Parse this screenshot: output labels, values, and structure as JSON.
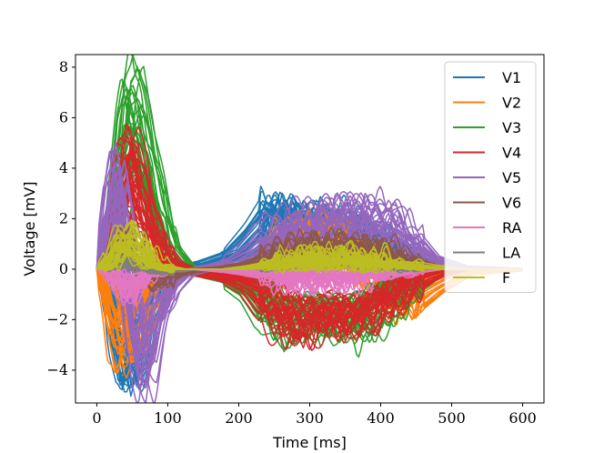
{
  "chart_data": {
    "type": "line",
    "title": "",
    "xlabel": "Time [ms]",
    "ylabel": "Voltage [mV]",
    "xlim": [
      -30,
      630
    ],
    "ylim": [
      -5.3,
      8.5
    ],
    "xticks": [
      0,
      100,
      200,
      300,
      400,
      500,
      600
    ],
    "yticks": [
      -4,
      -2,
      0,
      2,
      4,
      6,
      8
    ],
    "xtick_labels": [
      "0",
      "100",
      "200",
      "300",
      "400",
      "500",
      "600"
    ],
    "ytick_labels": [
      "−4",
      "−2",
      "0",
      "2",
      "4",
      "6",
      "8"
    ],
    "grid": false,
    "legend_position": "top-right",
    "traces_per_lead": 30,
    "series": [
      {
        "name": "V1",
        "color": "#1f77b4",
        "x": [
          0,
          10,
          20,
          30,
          40,
          50,
          60,
          70,
          85,
          100,
          120,
          150,
          200,
          230,
          250,
          270,
          300,
          330,
          360,
          400,
          430,
          460,
          500,
          600
        ],
        "y": [
          0,
          0.1,
          -0.8,
          -2.5,
          -3.8,
          -3.5,
          -2.2,
          -1.2,
          -0.5,
          -0.2,
          0.0,
          0.2,
          0.6,
          1.4,
          2.1,
          2.0,
          1.5,
          1.8,
          1.4,
          0.8,
          0.4,
          0.1,
          0.0,
          0.0
        ]
      },
      {
        "name": "V2",
        "color": "#ff7f0e",
        "x": [
          0,
          10,
          20,
          30,
          40,
          50,
          60,
          70,
          85,
          100,
          120,
          150,
          200,
          230,
          250,
          270,
          300,
          330,
          360,
          400,
          430,
          460,
          500,
          600
        ],
        "y": [
          0,
          0.1,
          -1.0,
          -2.5,
          -3.2,
          -2.8,
          -2.0,
          -1.2,
          -0.6,
          -0.3,
          -0.1,
          0.0,
          -0.3,
          -0.8,
          -0.4,
          1.2,
          1.6,
          1.2,
          0.6,
          -0.6,
          -1.4,
          -0.8,
          -0.2,
          0.0
        ]
      },
      {
        "name": "V3",
        "color": "#2ca02c",
        "x": [
          0,
          10,
          20,
          30,
          40,
          50,
          60,
          70,
          85,
          100,
          120,
          150,
          200,
          230,
          250,
          270,
          300,
          330,
          360,
          400,
          430,
          460,
          500,
          600
        ],
        "y": [
          0,
          0.2,
          0.8,
          3.0,
          6.0,
          7.0,
          5.8,
          4.5,
          2.5,
          0.8,
          0.1,
          -0.2,
          -0.5,
          -1.0,
          -1.8,
          -2.2,
          -2.0,
          -1.8,
          -2.4,
          -1.6,
          -0.8,
          -0.2,
          0.0,
          0.0
        ]
      },
      {
        "name": "V4",
        "color": "#d62728",
        "x": [
          0,
          10,
          20,
          30,
          40,
          50,
          60,
          70,
          85,
          100,
          120,
          150,
          200,
          230,
          250,
          270,
          300,
          330,
          360,
          400,
          430,
          460,
          500,
          600
        ],
        "y": [
          0,
          0.1,
          0.5,
          2.0,
          4.0,
          4.5,
          3.5,
          2.2,
          1.0,
          0.3,
          0.0,
          -0.2,
          -0.4,
          -0.8,
          -1.5,
          -2.0,
          -2.2,
          -1.8,
          -2.0,
          -1.5,
          -0.8,
          -0.3,
          0.0,
          0.0
        ]
      },
      {
        "name": "V5",
        "color": "#9467bd",
        "x": [
          0,
          10,
          20,
          30,
          40,
          50,
          60,
          70,
          85,
          100,
          120,
          150,
          200,
          230,
          250,
          270,
          300,
          330,
          360,
          400,
          430,
          460,
          500,
          600
        ],
        "y": [
          0,
          0.5,
          2.5,
          3.8,
          2.0,
          -1.5,
          -3.5,
          -4.0,
          -2.0,
          -0.8,
          -0.2,
          0.0,
          0.3,
          0.8,
          1.4,
          1.6,
          1.8,
          2.0,
          2.1,
          2.0,
          1.2,
          0.4,
          0.1,
          0.0
        ]
      },
      {
        "name": "V6",
        "color": "#8c564b",
        "x": [
          0,
          10,
          20,
          30,
          40,
          50,
          60,
          70,
          85,
          100,
          120,
          150,
          200,
          230,
          250,
          270,
          300,
          330,
          360,
          400,
          430,
          460,
          500,
          600
        ],
        "y": [
          0,
          0.1,
          0.3,
          0.8,
          1.2,
          0.9,
          0.3,
          -0.2,
          -0.4,
          -0.2,
          -0.1,
          0.0,
          0.1,
          0.2,
          0.4,
          0.6,
          0.8,
          0.9,
          0.8,
          0.6,
          0.3,
          0.1,
          0.0,
          0.0
        ]
      },
      {
        "name": "RA",
        "color": "#e377c2",
        "x": [
          0,
          10,
          20,
          30,
          40,
          50,
          60,
          70,
          85,
          100,
          120,
          150,
          200,
          230,
          250,
          270,
          300,
          330,
          360,
          400,
          430,
          460,
          500,
          600
        ],
        "y": [
          0,
          0.0,
          -0.2,
          -0.6,
          -0.9,
          -0.7,
          -0.4,
          -0.2,
          -0.1,
          0.0,
          0.0,
          0.0,
          -0.1,
          -0.2,
          -0.3,
          -0.4,
          -0.4,
          -0.4,
          -0.3,
          -0.2,
          -0.1,
          0.0,
          0.0,
          0.0
        ]
      },
      {
        "name": "LA",
        "color": "#7f7f7f",
        "x": [
          0,
          10,
          20,
          30,
          40,
          50,
          60,
          70,
          85,
          100,
          120,
          150,
          200,
          230,
          250,
          270,
          300,
          330,
          360,
          400,
          430,
          460,
          500,
          600
        ],
        "y": [
          0,
          0.0,
          0.1,
          0.3,
          0.4,
          0.3,
          0.1,
          0.0,
          -0.1,
          -0.1,
          0.0,
          0.0,
          0.0,
          0.1,
          0.1,
          0.2,
          0.2,
          0.2,
          0.2,
          0.1,
          0.1,
          0.0,
          0.0,
          0.0
        ]
      },
      {
        "name": "F",
        "color": "#bcbd22",
        "x": [
          0,
          10,
          20,
          30,
          40,
          50,
          60,
          70,
          85,
          100,
          120,
          150,
          200,
          230,
          250,
          270,
          300,
          330,
          360,
          400,
          430,
          460,
          500,
          600
        ],
        "y": [
          0,
          0.1,
          0.4,
          1.0,
          1.4,
          1.2,
          0.8,
          0.4,
          0.1,
          0.0,
          0.0,
          0.0,
          0.0,
          0.1,
          0.2,
          0.3,
          0.4,
          0.5,
          0.4,
          0.3,
          0.2,
          0.1,
          0.0,
          0.0
        ]
      }
    ]
  }
}
